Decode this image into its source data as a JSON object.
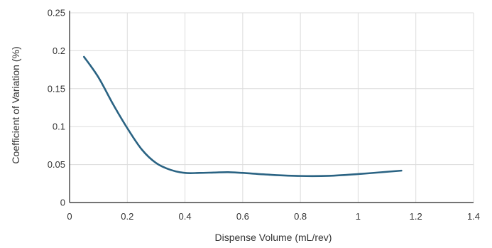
{
  "chart_data": {
    "type": "line",
    "title": "",
    "xlabel": "Dispense Volume (mL/rev)",
    "ylabel": "Coefficient of Variation (%)",
    "xlim": [
      0,
      1.4
    ],
    "ylim": [
      0,
      0.25
    ],
    "x_ticks": [
      0,
      0.2,
      0.4,
      0.6,
      0.8,
      1,
      1.2,
      1.4
    ],
    "x_tick_labels": [
      "0",
      "0.2",
      "0.4",
      "0.6",
      "0.8",
      "1",
      "1.2",
      "1.4"
    ],
    "y_ticks": [
      0,
      0.05,
      0.1,
      0.15,
      0.2,
      0.25
    ],
    "y_tick_labels": [
      "0",
      "0.05",
      "0.1",
      "0.15",
      "0.2",
      "0.25"
    ],
    "grid": true,
    "legend": "none",
    "series": [
      {
        "color": "#2a6383",
        "x": [
          0.05,
          0.1,
          0.15,
          0.2,
          0.25,
          0.3,
          0.35,
          0.4,
          0.45,
          0.5,
          0.55,
          0.6,
          0.7,
          0.8,
          0.9,
          1.0,
          1.1,
          1.15
        ],
        "y": [
          0.192,
          0.165,
          0.13,
          0.098,
          0.07,
          0.052,
          0.043,
          0.039,
          0.039,
          0.0395,
          0.04,
          0.039,
          0.0365,
          0.035,
          0.0352,
          0.0375,
          0.0405,
          0.042
        ]
      }
    ]
  }
}
